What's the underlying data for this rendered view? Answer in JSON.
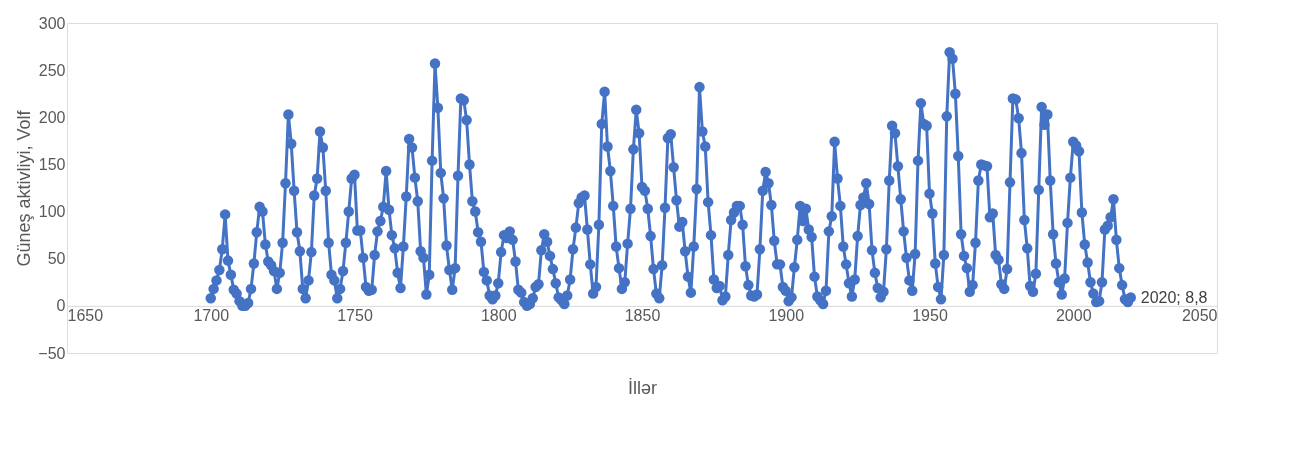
{
  "chart_data": {
    "type": "line",
    "xlabel": "İllər",
    "ylabel": "Güneş aktivliyi, Volf",
    "x": [
      1700,
      1701,
      1702,
      1703,
      1704,
      1705,
      1706,
      1707,
      1708,
      1709,
      1710,
      1711,
      1712,
      1713,
      1714,
      1715,
      1716,
      1717,
      1718,
      1719,
      1720,
      1721,
      1722,
      1723,
      1724,
      1725,
      1726,
      1727,
      1728,
      1729,
      1730,
      1731,
      1732,
      1733,
      1734,
      1735,
      1736,
      1737,
      1738,
      1739,
      1740,
      1741,
      1742,
      1743,
      1744,
      1745,
      1746,
      1747,
      1748,
      1749,
      1750,
      1751,
      1752,
      1753,
      1754,
      1755,
      1756,
      1757,
      1758,
      1759,
      1760,
      1761,
      1762,
      1763,
      1764,
      1765,
      1766,
      1767,
      1768,
      1769,
      1770,
      1771,
      1772,
      1773,
      1774,
      1775,
      1776,
      1777,
      1778,
      1779,
      1780,
      1781,
      1782,
      1783,
      1784,
      1785,
      1786,
      1787,
      1788,
      1789,
      1790,
      1791,
      1792,
      1793,
      1794,
      1795,
      1796,
      1797,
      1798,
      1799,
      1800,
      1801,
      1802,
      1803,
      1804,
      1805,
      1806,
      1807,
      1808,
      1809,
      1810,
      1811,
      1812,
      1813,
      1814,
      1815,
      1816,
      1817,
      1818,
      1819,
      1820,
      1821,
      1822,
      1823,
      1824,
      1825,
      1826,
      1827,
      1828,
      1829,
      1830,
      1831,
      1832,
      1833,
      1834,
      1835,
      1836,
      1837,
      1838,
      1839,
      1840,
      1841,
      1842,
      1843,
      1844,
      1845,
      1846,
      1847,
      1848,
      1849,
      1850,
      1851,
      1852,
      1853,
      1854,
      1855,
      1856,
      1857,
      1858,
      1859,
      1860,
      1861,
      1862,
      1863,
      1864,
      1865,
      1866,
      1867,
      1868,
      1869,
      1870,
      1871,
      1872,
      1873,
      1874,
      1875,
      1876,
      1877,
      1878,
      1879,
      1880,
      1881,
      1882,
      1883,
      1884,
      1885,
      1886,
      1887,
      1888,
      1889,
      1890,
      1891,
      1892,
      1893,
      1894,
      1895,
      1896,
      1897,
      1898,
      1899,
      1900,
      1901,
      1902,
      1903,
      1904,
      1905,
      1906,
      1907,
      1908,
      1909,
      1910,
      1911,
      1912,
      1913,
      1914,
      1915,
      1916,
      1917,
      1918,
      1919,
      1920,
      1921,
      1922,
      1923,
      1924,
      1925,
      1926,
      1927,
      1928,
      1929,
      1930,
      1931,
      1932,
      1933,
      1934,
      1935,
      1936,
      1937,
      1938,
      1939,
      1940,
      1941,
      1942,
      1943,
      1944,
      1945,
      1946,
      1947,
      1948,
      1949,
      1950,
      1951,
      1952,
      1953,
      1954,
      1955,
      1956,
      1957,
      1958,
      1959,
      1960,
      1961,
      1962,
      1963,
      1964,
      1965,
      1966,
      1967,
      1968,
      1969,
      1970,
      1971,
      1972,
      1973,
      1974,
      1975,
      1976,
      1977,
      1978,
      1979,
      1980,
      1981,
      1982,
      1983,
      1984,
      1985,
      1986,
      1987,
      1988,
      1989,
      1990,
      1991,
      1992,
      1993,
      1994,
      1995,
      1996,
      1997,
      1998,
      1999,
      2000,
      2001,
      2002,
      2003,
      2004,
      2005,
      2006,
      2007,
      2008,
      2009,
      2010,
      2011,
      2012,
      2013,
      2014,
      2015,
      2016,
      2017,
      2018,
      2019,
      2020
    ],
    "series": [
      {
        "color": "#4472c4",
        "values": [
          8,
          18,
          27,
          38,
          60,
          97,
          48,
          33,
          17,
          13,
          5,
          0,
          0,
          3,
          18,
          45,
          78,
          105,
          100,
          65,
          47,
          43,
          37,
          18,
          35,
          67,
          130,
          203,
          172,
          122,
          78,
          58,
          18,
          8,
          27,
          57,
          117,
          135,
          185,
          168,
          122,
          67,
          33,
          27,
          8,
          18,
          37,
          67,
          100,
          135,
          139,
          80,
          80,
          51,
          20,
          16,
          17,
          54,
          79,
          90,
          105,
          143,
          102,
          75,
          61,
          35,
          19,
          63,
          116,
          177,
          168,
          136,
          111,
          58,
          51,
          12,
          33,
          154,
          257,
          210,
          141,
          114,
          64,
          38,
          17,
          40,
          138,
          220,
          218,
          197,
          150,
          111,
          100,
          78,
          68,
          36,
          27,
          11,
          7,
          11,
          24,
          57,
          75,
          72,
          79,
          70,
          47,
          17,
          14,
          4,
          0,
          2,
          8,
          20,
          23,
          59,
          76,
          68,
          53,
          39,
          24,
          9,
          6,
          2,
          11,
          28,
          60,
          83,
          109,
          115,
          117,
          81,
          44,
          13,
          20,
          86,
          193,
          227,
          169,
          143,
          106,
          63,
          40,
          18,
          25,
          66,
          103,
          166,
          208,
          183,
          126,
          122,
          103,
          74,
          39,
          13,
          8,
          43,
          104,
          178,
          182,
          147,
          112,
          84,
          89,
          58,
          31,
          14,
          63,
          124,
          232,
          185,
          169,
          110,
          75,
          28,
          19,
          21,
          6,
          10,
          54,
          91,
          99,
          106,
          106,
          86,
          42,
          22,
          11,
          10,
          12,
          60,
          122,
          142,
          130,
          107,
          69,
          44,
          44,
          20,
          16,
          5,
          9,
          41,
          70,
          106,
          90,
          103,
          81,
          73,
          31,
          10,
          6,
          2,
          16,
          79,
          95,
          174,
          135,
          106,
          63,
          44,
          24,
          10,
          28,
          74,
          107,
          115,
          130,
          108,
          59,
          35,
          19,
          9,
          15,
          60,
          133,
          191,
          183,
          148,
          113,
          79,
          51,
          27,
          16,
          55,
          154,
          215,
          193,
          191,
          119,
          98,
          45,
          20,
          7,
          54,
          201,
          269,
          262,
          225,
          159,
          76,
          53,
          40,
          15,
          22,
          67,
          133,
          150,
          149,
          148,
          94,
          98,
          54,
          49,
          23,
          18,
          39,
          131,
          220,
          219,
          199,
          162,
          91,
          61,
          21,
          15,
          34,
          123,
          211,
          192,
          203,
          133,
          76,
          45,
          25,
          12,
          29,
          88,
          136,
          174,
          170,
          164,
          99,
          65,
          46,
          25,
          13,
          4,
          5,
          25,
          81,
          85,
          94,
          113,
          70,
          40,
          22,
          7,
          4,
          8.8
        ]
      }
    ],
    "xlim": [
      1650,
      2050
    ],
    "xticks": [
      1650,
      1700,
      1750,
      1800,
      1850,
      1900,
      1950,
      2000,
      2050
    ],
    "ylim": [
      -50,
      300
    ],
    "yticks": [
      -50,
      0,
      50,
      100,
      150,
      200,
      250,
      300
    ],
    "grid": false,
    "marker": "circle",
    "line_style": "solid",
    "annotations": [
      {
        "text": "2020; 8,8",
        "x": 2020,
        "y": 8.8
      }
    ]
  }
}
